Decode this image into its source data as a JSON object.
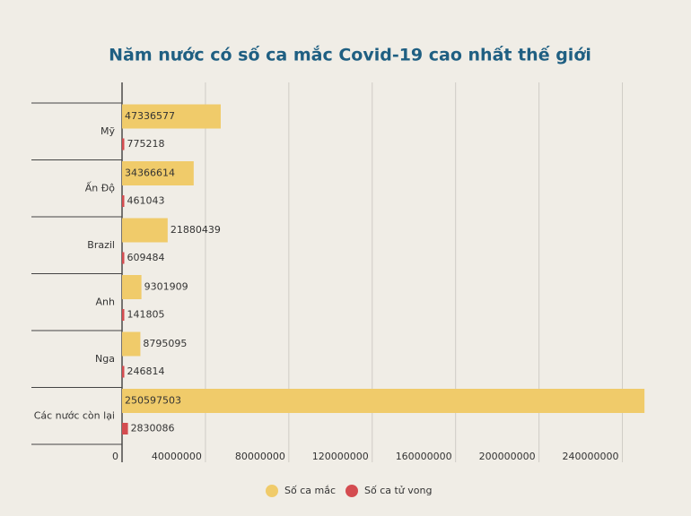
{
  "chart_data": {
    "type": "hbar",
    "title": "Năm nước có số ca mắc Covid-19 cao nhất thế giới",
    "categories": [
      "Mỹ",
      "Ấn Độ",
      "Brazil",
      "Anh",
      "Nga",
      "Các nước còn lại"
    ],
    "series": [
      {
        "name": "Số ca mắc",
        "color": "#f0cb6a",
        "values": [
          47336577,
          34366614,
          21880439,
          9301909,
          8795095,
          250597503
        ]
      },
      {
        "name": "Số ca tử vong",
        "color": "#d44c50",
        "values": [
          775218,
          461043,
          609484,
          141805,
          246814,
          2830086
        ]
      }
    ],
    "xlim": [
      0,
      260000000
    ],
    "xticks": [
      0,
      40000000,
      80000000,
      120000000,
      160000000,
      200000000,
      240000000
    ],
    "grid": true,
    "legend": "bottom"
  }
}
